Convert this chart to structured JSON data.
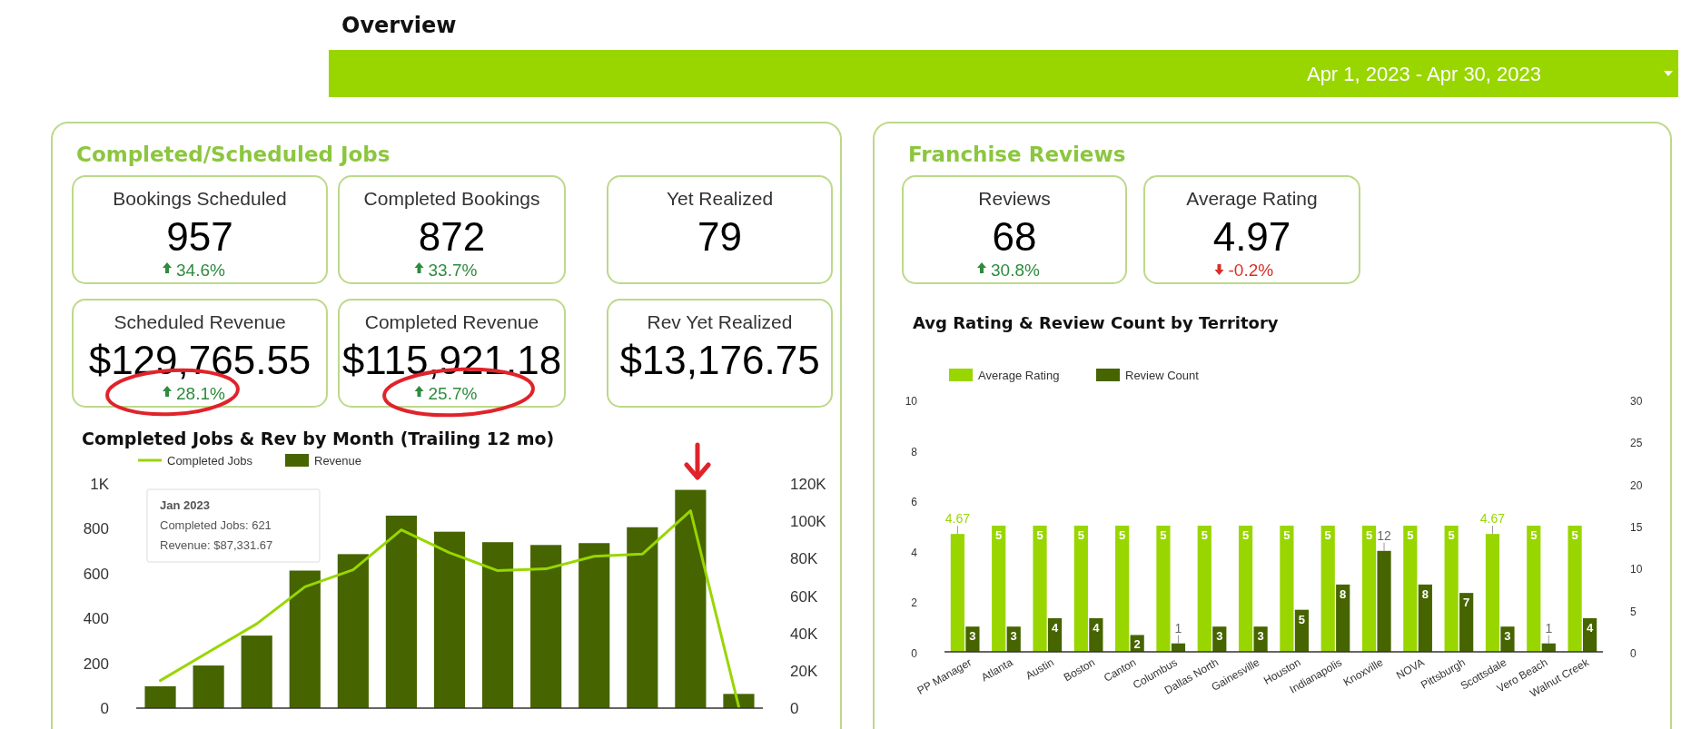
{
  "chart_data": [
    {
      "type": "other",
      "title": "Overview",
      "annotations": [
        "Apr 1, 2023 - Apr 30, 2023"
      ]
    },
    {
      "type": "other",
      "title": "Completed/Scheduled Jobs",
      "categories": [
        "Bookings Scheduled",
        "Completed Bookings",
        "Yet Realized",
        "Scheduled Revenue",
        "Completed Revenue",
        "Rev Yet Realized"
      ],
      "value_labels": [
        "957",
        "872",
        "79",
        "$129,765.55",
        "$115,921.18",
        "$13,176.75"
      ],
      "annotations": [
        {
          "text": "34.6%",
          "x": "Bookings Scheduled"
        },
        {
          "text": "33.7%",
          "x": "Completed Bookings"
        },
        {
          "text": "28.1%",
          "x": "Scheduled Revenue"
        },
        {
          "text": "25.7%",
          "x": "Completed Revenue"
        }
      ]
    },
    {
      "type": "bar",
      "title": "Completed Jobs & Rev by Month (Trailing 12 mo)",
      "categories": [
        null,
        null,
        null,
        null,
        null,
        null,
        null,
        null,
        null,
        null,
        null,
        null,
        null
      ],
      "legend": "top left",
      "ylim": [
        0,
        1000
      ],
      "yticks": [
        0,
        200,
        400,
        600,
        800,
        {
          "value": 1000,
          "label": "1K"
        }
      ],
      "y2lim": [
        0,
        120000
      ],
      "y2ticks": [
        0,
        {
          "value": 20000,
          "label": "20K"
        },
        {
          "value": 40000,
          "label": "40K"
        },
        {
          "value": 60000,
          "label": "60K"
        },
        {
          "value": 80000,
          "label": "80K"
        },
        {
          "value": 100000,
          "label": "100K"
        },
        {
          "value": 120000,
          "label": "120K"
        }
      ],
      "annotations": [
        "Jan 2023",
        "Completed Jobs: 621",
        "Revenue: $87,331.67"
      ],
      "series": [
        {
          "name": "Completed Jobs",
          "type": "line",
          "color": "#99d600",
          "values": [
            123,
            250,
            376,
            541,
            617,
            795,
            693,
            613,
            621,
            677,
            687,
            880,
            6
          ]
        },
        {
          "name": "Revenue",
          "type": "bar",
          "axis": "y2",
          "color": "#466400",
          "values": [
            11700,
            22800,
            38800,
            73600,
            82400,
            103000,
            94400,
            88800,
            87300,
            88300,
            96800,
            116800,
            7600
          ]
        }
      ]
    },
    {
      "type": "other",
      "title": "Franchise Reviews",
      "categories": [
        "Reviews",
        "Average Rating"
      ],
      "value_labels": [
        "68",
        "4.97"
      ],
      "annotations": [
        {
          "text": "30.8%",
          "x": "Reviews"
        },
        {
          "text": "-0.2%",
          "x": "Average Rating"
        }
      ]
    },
    {
      "type": "bar",
      "title": "Avg Rating & Review Count by Territory",
      "categories": [
        "PP Manager",
        "Atlanta",
        "Austin",
        "Boston",
        "Canton",
        "Columbus",
        "Dallas North",
        "Gainesville",
        "Houston",
        "Indianapolis",
        "Knoxville",
        "NOVA",
        "Pittsburgh",
        "Scottsdale",
        "Vero Beach",
        "Walnut Creek"
      ],
      "legend": "top left",
      "data_labels": true,
      "ylim": [
        0,
        10
      ],
      "yticks": [
        0,
        2,
        4,
        6,
        8,
        10
      ],
      "y2lim": [
        0,
        30
      ],
      "y2ticks": [
        0,
        5,
        10,
        15,
        20,
        25,
        30
      ],
      "series": [
        {
          "name": "Average Rating",
          "color": "#99d600",
          "values": [
            4.67,
            5,
            5,
            5,
            5,
            5,
            5,
            5,
            5,
            5,
            5,
            5,
            5,
            4.67,
            5,
            5
          ]
        },
        {
          "name": "Review Count",
          "axis": "y2",
          "color": "#466400",
          "values": [
            3,
            3,
            4,
            4,
            2,
            1,
            3,
            3,
            5,
            8,
            12,
            8,
            7,
            3,
            1,
            4
          ]
        }
      ]
    }
  ]
}
